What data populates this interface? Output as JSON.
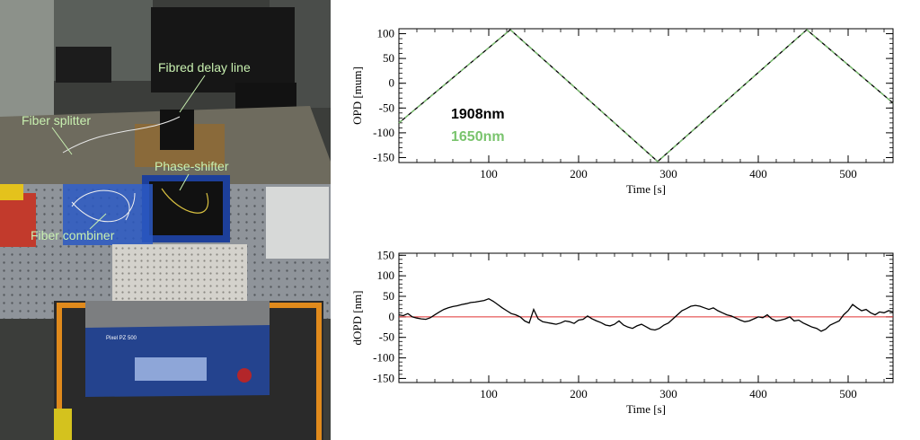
{
  "photo": {
    "labels": {
      "fibred_delay_line": "Fibred delay line",
      "fiber_splitter": "Fiber splitter",
      "phase_shifter": "Phase-shifter",
      "fiber_combiner": "Fiber combiner"
    },
    "device_name": "Pixel PZ 500",
    "label_color": "#c8f0b0"
  },
  "chart_data": [
    {
      "type": "line",
      "xlabel": "Time [s]",
      "ylabel": "OPD [mum]",
      "xlim": [
        0,
        550
      ],
      "ylim": [
        -160,
        110
      ],
      "xticks": [
        100,
        200,
        300,
        400,
        500
      ],
      "yticks": [
        -150,
        -100,
        -50,
        0,
        50,
        100
      ],
      "legend_placement": "left",
      "series": [
        {
          "name": "1908nm",
          "color": "#000000",
          "x": [
            0,
            124,
            288,
            454,
            550
          ],
          "y": [
            -80,
            108,
            -158,
            108,
            -40
          ]
        },
        {
          "name": "1650nm",
          "color": "#7ac46e",
          "x": [
            0,
            124,
            288,
            454,
            550
          ],
          "y": [
            -80,
            108,
            -158,
            108,
            -40
          ]
        }
      ]
    },
    {
      "type": "line",
      "xlabel": "Time [s]",
      "ylabel": "dOPD [nm]",
      "xlim": [
        0,
        550
      ],
      "ylim": [
        -160,
        155
      ],
      "xticks": [
        100,
        200,
        300,
        400,
        500
      ],
      "yticks": [
        -150,
        -100,
        -50,
        0,
        50,
        100,
        150
      ],
      "reference_line": {
        "y": 0,
        "color": "#e03030"
      },
      "series": [
        {
          "name": "",
          "color": "#000000",
          "x": [
            0,
            5,
            10,
            15,
            20,
            25,
            30,
            35,
            40,
            45,
            50,
            55,
            60,
            65,
            70,
            75,
            80,
            85,
            90,
            95,
            100,
            105,
            110,
            115,
            120,
            125,
            130,
            135,
            140,
            145,
            150,
            155,
            160,
            165,
            170,
            175,
            180,
            185,
            190,
            195,
            200,
            205,
            210,
            215,
            220,
            225,
            230,
            235,
            240,
            245,
            250,
            255,
            260,
            265,
            270,
            275,
            280,
            285,
            290,
            295,
            300,
            305,
            310,
            315,
            320,
            325,
            330,
            335,
            340,
            345,
            350,
            355,
            360,
            365,
            370,
            375,
            380,
            385,
            390,
            395,
            400,
            405,
            410,
            415,
            420,
            425,
            430,
            435,
            440,
            445,
            450,
            455,
            460,
            465,
            470,
            475,
            480,
            485,
            490,
            495,
            500,
            505,
            510,
            515,
            520,
            525,
            530,
            535,
            540,
            545,
            550
          ],
          "y": [
            5,
            3,
            8,
            0,
            -3,
            -5,
            -6,
            -2,
            5,
            12,
            18,
            22,
            25,
            27,
            30,
            32,
            35,
            36,
            38,
            40,
            44,
            38,
            30,
            22,
            15,
            8,
            5,
            0,
            -10,
            -15,
            18,
            -5,
            -12,
            -14,
            -16,
            -18,
            -15,
            -10,
            -12,
            -16,
            -8,
            -6,
            2,
            -5,
            -10,
            -14,
            -20,
            -22,
            -18,
            -10,
            -20,
            -25,
            -28,
            -22,
            -18,
            -24,
            -30,
            -32,
            -28,
            -20,
            -15,
            -5,
            5,
            15,
            20,
            26,
            28,
            26,
            22,
            18,
            22,
            15,
            10,
            5,
            2,
            -3,
            -8,
            -12,
            -10,
            -5,
            0,
            -2,
            5,
            -5,
            -10,
            -8,
            -5,
            0,
            -10,
            -8,
            -15,
            -20,
            -25,
            -28,
            -35,
            -30,
            -20,
            -15,
            -10,
            5,
            15,
            30,
            22,
            15,
            18,
            10,
            5,
            12,
            10,
            15,
            12
          ]
        }
      ]
    }
  ]
}
